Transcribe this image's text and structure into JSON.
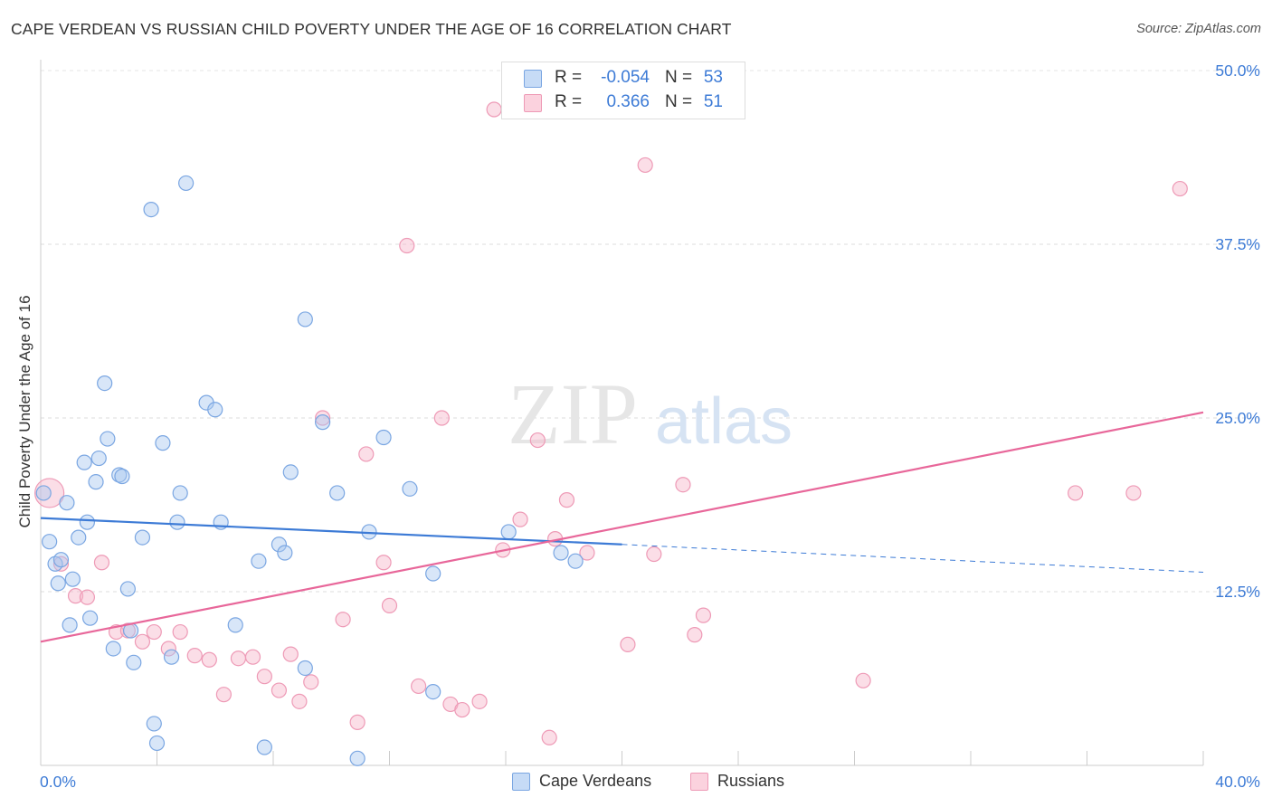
{
  "header": {
    "title": "CAPE VERDEAN VS RUSSIAN CHILD POVERTY UNDER THE AGE OF 16 CORRELATION CHART",
    "source": "Source: ZipAtlas.com"
  },
  "watermark": {
    "part1": "ZIP",
    "part2": "atlas"
  },
  "legend_top": {
    "rows": [
      {
        "r_label": "R =",
        "r_value": "-0.054",
        "n_label": "N =",
        "n_value": "53",
        "color": "#a9c8f0"
      },
      {
        "r_label": "R =",
        "r_value": "0.366",
        "n_label": "N =",
        "n_value": "51",
        "color": "#f6b6c9"
      }
    ]
  },
  "legend_bottom": {
    "items": [
      {
        "label": "Cape Verdeans",
        "color": "#a9c8f0"
      },
      {
        "label": "Russians",
        "color": "#f6b6c9"
      }
    ]
  },
  "chart_data": {
    "type": "scatter",
    "title": "CAPE VERDEAN VS RUSSIAN CHILD POVERTY UNDER THE AGE OF 16 CORRELATION CHART",
    "xlabel": "",
    "ylabel": "Child Poverty Under the Age of 16",
    "xlim": [
      0,
      40
    ],
    "ylim": [
      0,
      50
    ],
    "x_tick_labels": [
      "0.0%",
      "40.0%"
    ],
    "y_ticks": [
      12.5,
      25.0,
      37.5,
      50.0
    ],
    "y_tick_labels": [
      "12.5%",
      "25.0%",
      "37.5%",
      "50.0%"
    ],
    "grid": true,
    "legend_placement": "top-center",
    "series": [
      {
        "name": "Cape Verdeans",
        "color": "#3d7bd6",
        "fill": "#a9c8f0",
        "r": -0.054,
        "n": 53,
        "trend": {
          "x0": 0,
          "y0": 17.8,
          "x1": 20,
          "y1": 15.9,
          "dashed_to_x": 40,
          "dashed_to_y": 13.9
        },
        "points": [
          [
            0.1,
            19.6
          ],
          [
            0.3,
            16.1
          ],
          [
            0.5,
            14.5
          ],
          [
            0.6,
            13.1
          ],
          [
            0.7,
            14.8
          ],
          [
            0.9,
            18.9
          ],
          [
            1.0,
            10.1
          ],
          [
            1.1,
            13.4
          ],
          [
            1.3,
            16.4
          ],
          [
            1.5,
            21.8
          ],
          [
            1.6,
            17.5
          ],
          [
            1.7,
            10.6
          ],
          [
            1.9,
            20.4
          ],
          [
            2.0,
            22.1
          ],
          [
            2.2,
            27.5
          ],
          [
            2.3,
            23.5
          ],
          [
            2.5,
            8.4
          ],
          [
            2.7,
            20.9
          ],
          [
            2.8,
            20.8
          ],
          [
            3.0,
            12.7
          ],
          [
            3.1,
            9.7
          ],
          [
            3.2,
            7.4
          ],
          [
            3.5,
            16.4
          ],
          [
            3.8,
            40.0
          ],
          [
            3.9,
            3.0
          ],
          [
            4.0,
            1.6
          ],
          [
            4.2,
            23.2
          ],
          [
            4.5,
            7.8
          ],
          [
            4.7,
            17.5
          ],
          [
            4.8,
            19.6
          ],
          [
            5.0,
            41.9
          ],
          [
            5.7,
            26.1
          ],
          [
            6.0,
            25.6
          ],
          [
            6.2,
            17.5
          ],
          [
            6.7,
            10.1
          ],
          [
            7.5,
            14.7
          ],
          [
            7.7,
            1.3
          ],
          [
            8.2,
            15.9
          ],
          [
            8.4,
            15.3
          ],
          [
            8.6,
            21.1
          ],
          [
            9.1,
            7.0
          ],
          [
            9.1,
            32.1
          ],
          [
            9.7,
            24.7
          ],
          [
            10.2,
            19.6
          ],
          [
            10.9,
            0.5
          ],
          [
            11.3,
            16.8
          ],
          [
            11.8,
            23.6
          ],
          [
            12.7,
            19.9
          ],
          [
            13.5,
            5.3
          ],
          [
            13.5,
            13.8
          ],
          [
            16.1,
            16.8
          ],
          [
            17.9,
            15.3
          ],
          [
            18.4,
            14.7
          ]
        ]
      },
      {
        "name": "Russians",
        "color": "#e8679a",
        "fill": "#f6b6c9",
        "r": 0.366,
        "n": 51,
        "trend": {
          "x0": 0,
          "y0": 8.9,
          "x1": 40,
          "y1": 25.4
        },
        "points": [
          [
            0.3,
            19.6
          ],
          [
            0.7,
            14.5
          ],
          [
            1.2,
            12.2
          ],
          [
            1.6,
            12.1
          ],
          [
            2.1,
            14.6
          ],
          [
            2.6,
            9.6
          ],
          [
            3.0,
            9.7
          ],
          [
            3.5,
            8.9
          ],
          [
            3.9,
            9.6
          ],
          [
            4.4,
            8.4
          ],
          [
            4.8,
            9.6
          ],
          [
            5.3,
            7.9
          ],
          [
            5.8,
            7.6
          ],
          [
            6.3,
            5.1
          ],
          [
            6.8,
            7.7
          ],
          [
            7.3,
            7.8
          ],
          [
            7.7,
            6.4
          ],
          [
            8.2,
            5.4
          ],
          [
            8.6,
            8.0
          ],
          [
            8.9,
            4.6
          ],
          [
            9.3,
            6.0
          ],
          [
            9.7,
            25.0
          ],
          [
            10.4,
            10.5
          ],
          [
            10.9,
            3.1
          ],
          [
            11.2,
            22.4
          ],
          [
            11.8,
            14.6
          ],
          [
            12.0,
            11.5
          ],
          [
            12.6,
            37.4
          ],
          [
            13.0,
            5.7
          ],
          [
            13.8,
            25.0
          ],
          [
            14.1,
            4.4
          ],
          [
            14.5,
            4.0
          ],
          [
            15.1,
            4.6
          ],
          [
            15.6,
            47.2
          ],
          [
            15.9,
            15.5
          ],
          [
            16.5,
            17.7
          ],
          [
            17.1,
            23.4
          ],
          [
            17.5,
            2.0
          ],
          [
            17.7,
            16.3
          ],
          [
            18.1,
            19.1
          ],
          [
            18.8,
            15.3
          ],
          [
            20.2,
            8.7
          ],
          [
            20.8,
            43.2
          ],
          [
            21.1,
            15.2
          ],
          [
            22.1,
            20.2
          ],
          [
            22.5,
            9.4
          ],
          [
            22.8,
            10.8
          ],
          [
            28.3,
            6.1
          ],
          [
            35.6,
            19.6
          ],
          [
            37.6,
            19.6
          ],
          [
            39.2,
            41.5
          ]
        ]
      }
    ]
  }
}
